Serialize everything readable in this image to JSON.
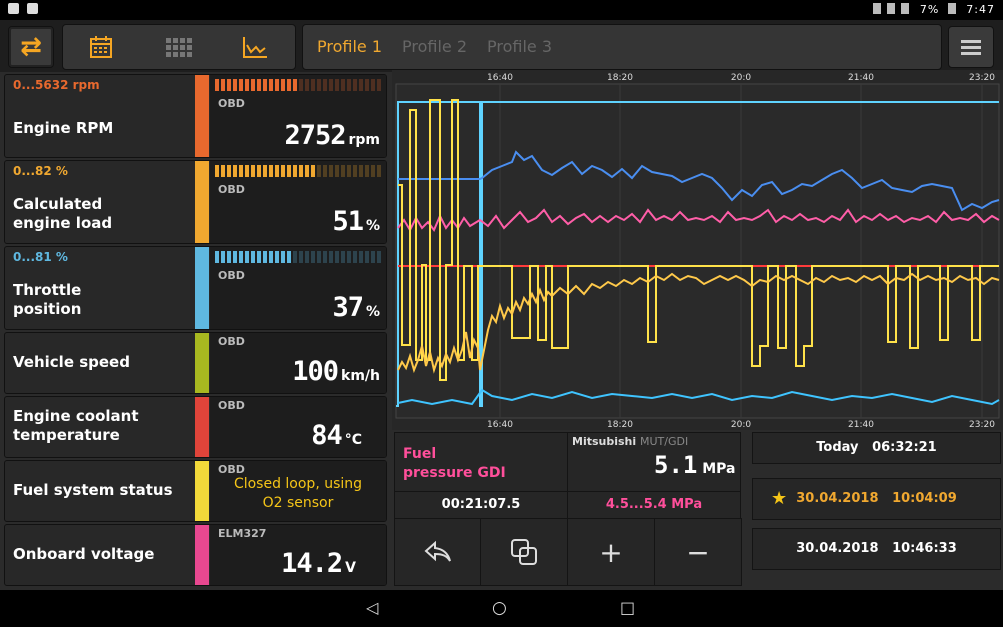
{
  "status": {
    "battery": "7%",
    "time": "7:47"
  },
  "toolbar": {
    "icons": [
      "swap-icon",
      "calendar-icon",
      "grid-icon",
      "chart-icon",
      "menu-icon"
    ],
    "profiles": [
      {
        "label": "Profile 1",
        "active": true
      },
      {
        "label": "Profile 2",
        "active": false
      },
      {
        "label": "Profile 3",
        "active": false
      }
    ]
  },
  "gauges": [
    {
      "range": "0...5632 rpm",
      "name": "Engine RPM",
      "source": "OBD",
      "value": "2752",
      "unit": "rpm",
      "color": "#e8692e",
      "fill": 0.49
    },
    {
      "range": "0...82 %",
      "name1": "Calculated",
      "name2": "engine load",
      "source": "OBD",
      "value": "51",
      "unit": "%",
      "color": "#f0a830",
      "fill": 0.62
    },
    {
      "range": "0...81 %",
      "name1": "Throttle",
      "name2": "position",
      "source": "OBD",
      "value": "37",
      "unit": "%",
      "color": "#5fb8e0",
      "fill": 0.46
    },
    {
      "name": "Vehicle speed",
      "source": "OBD",
      "value": "100",
      "unit": "km/h",
      "color": "#a8b820"
    },
    {
      "name1": "Engine coolant",
      "name2": "temperature",
      "source": "OBD",
      "value": "84",
      "unit": "°C",
      "color": "#e0443a"
    },
    {
      "name": "Fuel system status",
      "source": "OBD",
      "text1": "Closed loop,  using",
      "text2": "O2 sensor",
      "color": "#f2d93a"
    },
    {
      "name": "Onboard voltage",
      "source": "ELM327",
      "value": "14.2",
      "unit": "V",
      "color": "#e84890"
    }
  ],
  "chart": {
    "time_labels": [
      "16:40",
      "18:20",
      "20:0",
      "21:40",
      "23:20"
    ]
  },
  "fuel": {
    "title1": "Fuel",
    "title2": "pressure GDI",
    "source": "Mitsubishi",
    "source2": "MUT/GDI",
    "value": "5.1",
    "unit": "MPa",
    "timer": "00:21:07.5",
    "range": "4.5...5.4 MPa"
  },
  "actions": [
    "undo-icon",
    "copy-icon",
    "+",
    "−"
  ],
  "log": {
    "today_label": "Today",
    "today_time": "06:32:21",
    "row2_date": "30.04.2018",
    "row2_time": "10:04:09",
    "row3_date": "30.04.2018",
    "row3_time": "10:46:33"
  }
}
